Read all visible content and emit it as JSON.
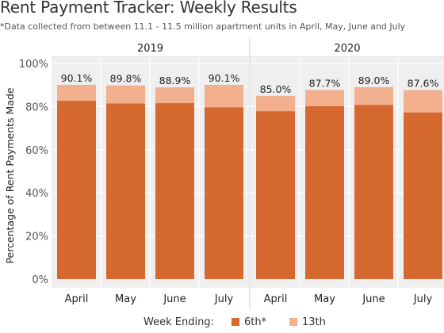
{
  "title": "Rent Payment Tracker: Weekly Results",
  "subtitle": "*Data collected from between 11.1 - 11.5 million apartment units in April, May, June and July",
  "legend": {
    "title": "Week Ending:",
    "items": [
      {
        "label": "6th*",
        "color": "#d6692f"
      },
      {
        "label": "13th",
        "color": "#f2b08f"
      }
    ]
  },
  "colors": {
    "sixth": "#d6692f",
    "thirteenth": "#f2b08f",
    "panel_bg": "#efefef",
    "grid": "#ffffff"
  },
  "chart_data": {
    "type": "bar",
    "stacked": true,
    "title": "Rent Payment Tracker: Weekly Results",
    "ylabel": "Percentage of Rent Payments Made",
    "xlabel": "",
    "ylim": [
      0,
      100
    ],
    "yticks": [
      "0%",
      "20%",
      "40%",
      "60%",
      "80%",
      "100%"
    ],
    "ytick_values": [
      0,
      20,
      40,
      60,
      80,
      100
    ],
    "panels": [
      {
        "label": "2019",
        "categories": [
          "April",
          "May",
          "June",
          "July"
        ],
        "series": [
          {
            "name": "6th*",
            "values": [
              82.7,
              81.5,
              81.6,
              79.7
            ]
          },
          {
            "name": "13th",
            "values": [
              7.4,
              8.3,
              7.3,
              10.4
            ]
          }
        ],
        "totals": [
          "90.1%",
          "89.8%",
          "88.9%",
          "90.1%"
        ]
      },
      {
        "label": "2020",
        "categories": [
          "April",
          "May",
          "June",
          "July"
        ],
        "series": [
          {
            "name": "6th*",
            "values": [
              77.9,
              80.2,
              80.8,
              77.3
            ]
          },
          {
            "name": "13th",
            "values": [
              7.1,
              7.5,
              8.2,
              10.3
            ]
          }
        ],
        "totals": [
          "85.0%",
          "87.7%",
          "89.0%",
          "87.6%"
        ]
      }
    ],
    "grid": true,
    "legend_position": "bottom"
  }
}
